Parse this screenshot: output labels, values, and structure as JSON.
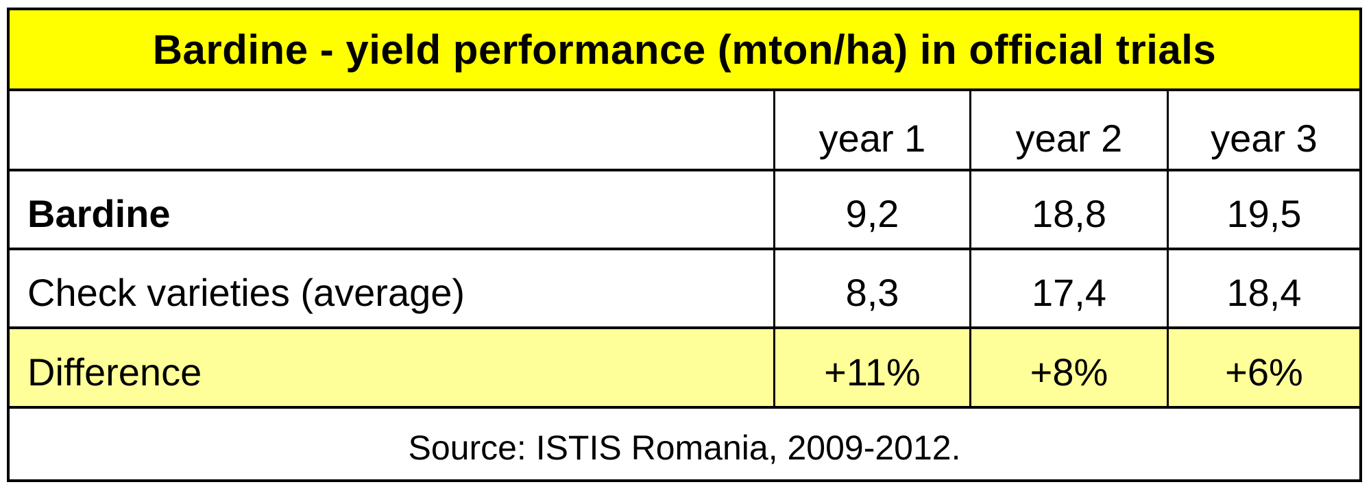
{
  "table": {
    "title": "Bardine - yield performance (mton/ha) in official trials",
    "title_bg": "#ffff00",
    "highlight_bg": "#ffff99",
    "border_color": "#000000",
    "header": {
      "row_label": "",
      "cols": [
        "year 1",
        "year 2",
        "year 3"
      ]
    },
    "rows": [
      {
        "label": "Bardine",
        "values": [
          "9,2",
          "18,8",
          "19,5"
        ]
      },
      {
        "label": "Check varieties (average)",
        "values": [
          "8,3",
          "17,4",
          "18,4"
        ]
      },
      {
        "label": "Difference",
        "values": [
          "+11%",
          "+8%",
          "+6%"
        ]
      }
    ],
    "footer": "Source: ISTIS Romania, 2009-2012."
  },
  "chart_data": {
    "type": "table",
    "title": "Bardine - yield performance (mton/ha) in official trials",
    "columns": [
      "",
      "year 1",
      "year 2",
      "year 3"
    ],
    "rows": [
      [
        "Bardine",
        "9,2",
        "18,8",
        "19,5"
      ],
      [
        "Check varieties (average)",
        "8,3",
        "17,4",
        "18,4"
      ],
      [
        "Difference",
        "+11%",
        "+8%",
        "+6%"
      ]
    ],
    "series": [
      {
        "name": "Bardine",
        "values": [
          9.2,
          18.8,
          19.5
        ]
      },
      {
        "name": "Check varieties (average)",
        "values": [
          8.3,
          17.4,
          18.4
        ]
      },
      {
        "name": "Difference",
        "values": [
          "+11%",
          "+8%",
          "+6%"
        ]
      }
    ],
    "units": "mton/ha",
    "source": "Source: ISTIS Romania, 2009-2012.",
    "layout_hints": {
      "title_bg": "#ffff00",
      "difference_row_bg": "#ffff99",
      "grid": "on",
      "bold_rows": [
        "Bardine"
      ]
    }
  }
}
